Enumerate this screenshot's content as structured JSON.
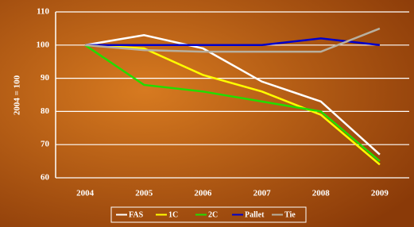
{
  "chart_data": {
    "type": "line",
    "y_label": "2004 = 100",
    "categories": [
      "2004",
      "2005",
      "2006",
      "2007",
      "2008",
      "2009"
    ],
    "series": [
      {
        "name": "FAS",
        "color": "#ffffff",
        "values": [
          100,
          103,
          99,
          89,
          83,
          67
        ]
      },
      {
        "name": "1C",
        "color": "#ffff00",
        "values": [
          100,
          99,
          91,
          86,
          79,
          64
        ]
      },
      {
        "name": "2C",
        "color": "#22dd00",
        "values": [
          100,
          88,
          86,
          83,
          80,
          65
        ]
      },
      {
        "name": "Pallet",
        "color": "#0000cc",
        "values": [
          100,
          100,
          100,
          100,
          102,
          100
        ]
      },
      {
        "name": "Tie",
        "color": "#b8b0a0",
        "values": [
          100,
          98.5,
          98,
          98,
          98,
          105
        ]
      }
    ],
    "ylim": [
      60,
      110
    ],
    "yticks": [
      60,
      70,
      80,
      90,
      100,
      110
    ],
    "grid": true
  }
}
